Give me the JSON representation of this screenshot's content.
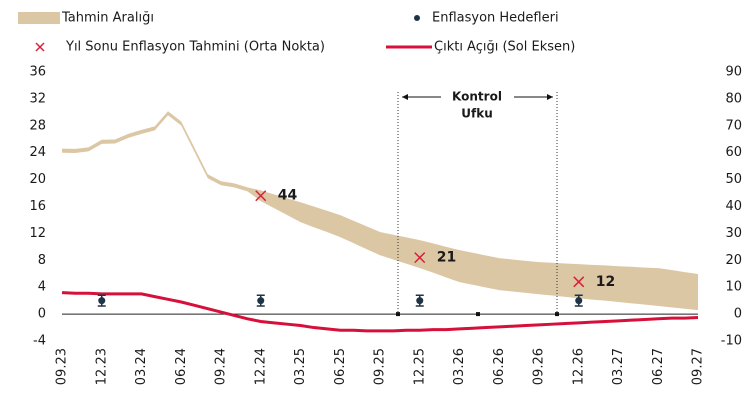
{
  "chart_data": {
    "type": "line",
    "categories": [
      "09.23",
      null,
      null,
      "12.23",
      null,
      null,
      "03.24",
      null,
      null,
      "06.24",
      null,
      null,
      "09.24",
      null,
      null,
      "12.24",
      null,
      null,
      "03.25",
      null,
      null,
      "06.25",
      null,
      null,
      "09.25",
      null,
      null,
      "12.25",
      null,
      null,
      "03.26",
      null,
      null,
      "06.26",
      null,
      null,
      "09.26",
      null,
      null,
      "12.26",
      null,
      null,
      "03.27",
      null,
      null,
      "06.27",
      null,
      null,
      "09.27"
    ],
    "ylim": [
      -4,
      36
    ],
    "yticks": [
      -4,
      0,
      4,
      8,
      12,
      16,
      20,
      24,
      28,
      32,
      36
    ],
    "y2lim": [
      -10,
      90
    ],
    "y2ticks": [
      -10,
      0,
      10,
      20,
      30,
      40,
      50,
      60,
      70,
      80,
      90
    ],
    "annotation": [
      "Kontrol",
      "Ufku"
    ],
    "series": [
      {
        "name": "Tahmin Aralığı",
        "type": "area",
        "axis": "y2",
        "color": "#dcc7a4",
        "upper": [
          61.5,
          61.4,
          62,
          64.8,
          64.9,
          67,
          68.5,
          69.8,
          75.4,
          71.6,
          61.8,
          52,
          49.4,
          48.6,
          47.1,
          46,
          44.5,
          43,
          41.6,
          40,
          38.4,
          36.8,
          34.7,
          32.6,
          30.5,
          29.5,
          28.5,
          27.5,
          26.3,
          25,
          23.8,
          22.8,
          21.8,
          20.8,
          20.3,
          19.8,
          19.3,
          19.1,
          18.8,
          18.6,
          18.3,
          18.1,
          17.8,
          17.6,
          17.3,
          17.1,
          16.4,
          15.6,
          14.9
        ],
        "lower": [
          60,
          59.9,
          60.5,
          63.3,
          63.4,
          65.5,
          67,
          68.3,
          73.9,
          70.1,
          60.3,
          50.5,
          47.9,
          47.1,
          45.6,
          42,
          39.4,
          36.8,
          34.2,
          32.3,
          30.5,
          28.6,
          26.4,
          24.1,
          21.9,
          20.3,
          18.7,
          17.1,
          15.4,
          13.6,
          11.9,
          10.9,
          9.9,
          8.9,
          8.4,
          7.9,
          7.4,
          6.9,
          6.4,
          5.9,
          5.4,
          5,
          4.5,
          4,
          3.5,
          3,
          2.5,
          2,
          1.5
        ]
      },
      {
        "name": "Enflasyon Hedefleri",
        "type": "errorbar",
        "axis": "y2",
        "color": "#1f3346",
        "values": [
          null,
          null,
          null,
          5,
          null,
          null,
          null,
          null,
          null,
          null,
          null,
          null,
          null,
          null,
          null,
          5,
          null,
          null,
          null,
          null,
          null,
          null,
          null,
          null,
          null,
          null,
          null,
          5,
          null,
          null,
          null,
          null,
          null,
          null,
          null,
          null,
          null,
          null,
          null,
          5,
          null,
          null,
          null,
          null,
          null,
          null,
          null,
          null,
          null
        ],
        "errors": [
          null,
          null,
          null,
          2,
          null,
          null,
          null,
          null,
          null,
          null,
          null,
          null,
          null,
          null,
          null,
          2,
          null,
          null,
          null,
          null,
          null,
          null,
          null,
          null,
          null,
          null,
          null,
          2,
          null,
          null,
          null,
          null,
          null,
          null,
          null,
          null,
          null,
          null,
          null,
          2,
          null,
          null,
          null,
          null,
          null,
          null,
          null,
          null,
          null
        ]
      },
      {
        "name": "Yıl Sonu Enflasyon Tahmini (Orta Nokta)",
        "type": "scatter",
        "axis": "y2",
        "color": "#d6203a",
        "values": [
          null,
          null,
          null,
          null,
          null,
          null,
          null,
          null,
          null,
          null,
          null,
          null,
          null,
          null,
          null,
          44,
          null,
          null,
          null,
          null,
          null,
          null,
          null,
          null,
          null,
          null,
          null,
          21,
          null,
          null,
          null,
          null,
          null,
          null,
          null,
          null,
          null,
          null,
          null,
          12,
          null,
          null,
          null,
          null,
          null,
          null,
          null,
          null,
          null
        ]
      },
      {
        "name": "Çıktı Açığı (Sol Eksen)",
        "type": "line",
        "color": "#d6103a",
        "values": [
          3.2,
          3.1,
          3.1,
          3.0,
          3.0,
          3.0,
          3.0,
          2.6,
          2.2,
          1.8,
          1.3,
          0.8,
          0.3,
          -0.2,
          -0.7,
          -1.1,
          -1.3,
          -1.5,
          -1.7,
          -2.0,
          -2.2,
          -2.4,
          -2.4,
          -2.5,
          -2.5,
          -2.5,
          -2.4,
          -2.4,
          -2.3,
          -2.3,
          -2.2,
          -2.1,
          -2.0,
          -1.9,
          -1.8,
          -1.7,
          -1.6,
          -1.5,
          -1.4,
          -1.3,
          -1.2,
          -1.1,
          -1.0,
          -0.9,
          -0.8,
          -0.7,
          -0.6,
          -0.6,
          -0.5
        ]
      }
    ]
  }
}
